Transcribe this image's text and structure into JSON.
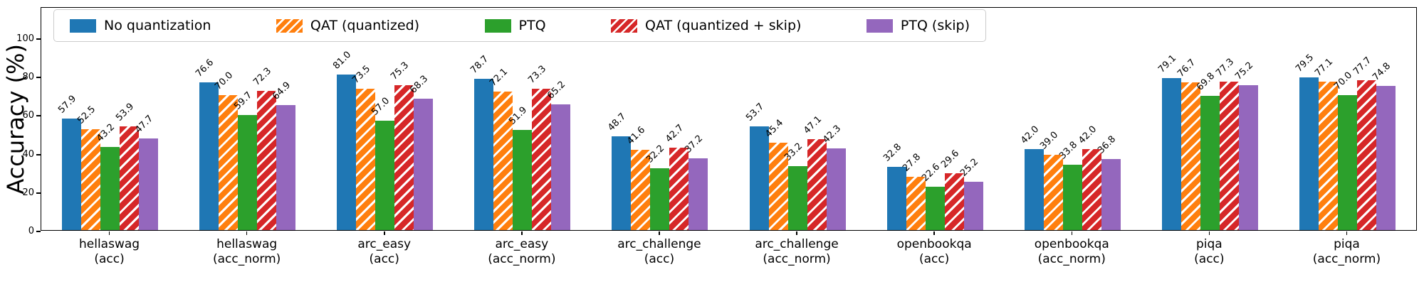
{
  "chart_data": {
    "type": "bar",
    "title": "",
    "xlabel": "",
    "ylabel": "Accuracy (%)",
    "ylim": [
      0,
      100
    ],
    "yticks": [
      0,
      20,
      40,
      60,
      80,
      100
    ],
    "grid": false,
    "legend_position": "top-left-horizontal",
    "bar_value_labels": true,
    "bar_label_rotation": 45,
    "hatch_style": "/",
    "categories": [
      "hellaswag\n(acc)",
      "hellaswag\n(acc_norm)",
      "arc_easy\n(acc)",
      "arc_easy\n(acc_norm)",
      "arc_challenge\n(acc)",
      "arc_challenge\n(acc_norm)",
      "openbookqa\n(acc)",
      "openbookqa\n(acc_norm)",
      "piqa\n(acc)",
      "piqa\n(acc_norm)"
    ],
    "series": [
      {
        "name": "No quantization",
        "color": "#1f77b4",
        "hatch": "none",
        "values": [
          57.9,
          76.6,
          81.0,
          78.7,
          48.7,
          53.7,
          32.8,
          42.0,
          79.1,
          79.5
        ]
      },
      {
        "name": "QAT (quantized)",
        "color": "#ff7f0e",
        "hatch": "/",
        "values": [
          52.5,
          70.0,
          73.5,
          72.1,
          41.6,
          45.4,
          27.8,
          39.0,
          76.7,
          77.1
        ]
      },
      {
        "name": "PTQ",
        "color": "#2ca02c",
        "hatch": "none",
        "values": [
          43.2,
          59.7,
          57.0,
          51.9,
          32.2,
          33.2,
          22.6,
          33.8,
          69.8,
          70.0
        ]
      },
      {
        "name": "QAT (quantized + skip)",
        "color": "#d62728",
        "hatch": "/",
        "values": [
          53.9,
          72.3,
          75.3,
          73.3,
          42.7,
          47.1,
          29.6,
          42.0,
          77.3,
          77.7
        ]
      },
      {
        "name": "PTQ (skip)",
        "color": "#9467bd",
        "hatch": "none",
        "values": [
          47.7,
          64.9,
          68.3,
          65.2,
          37.2,
          42.3,
          25.2,
          36.8,
          75.2,
          74.8
        ]
      }
    ]
  }
}
